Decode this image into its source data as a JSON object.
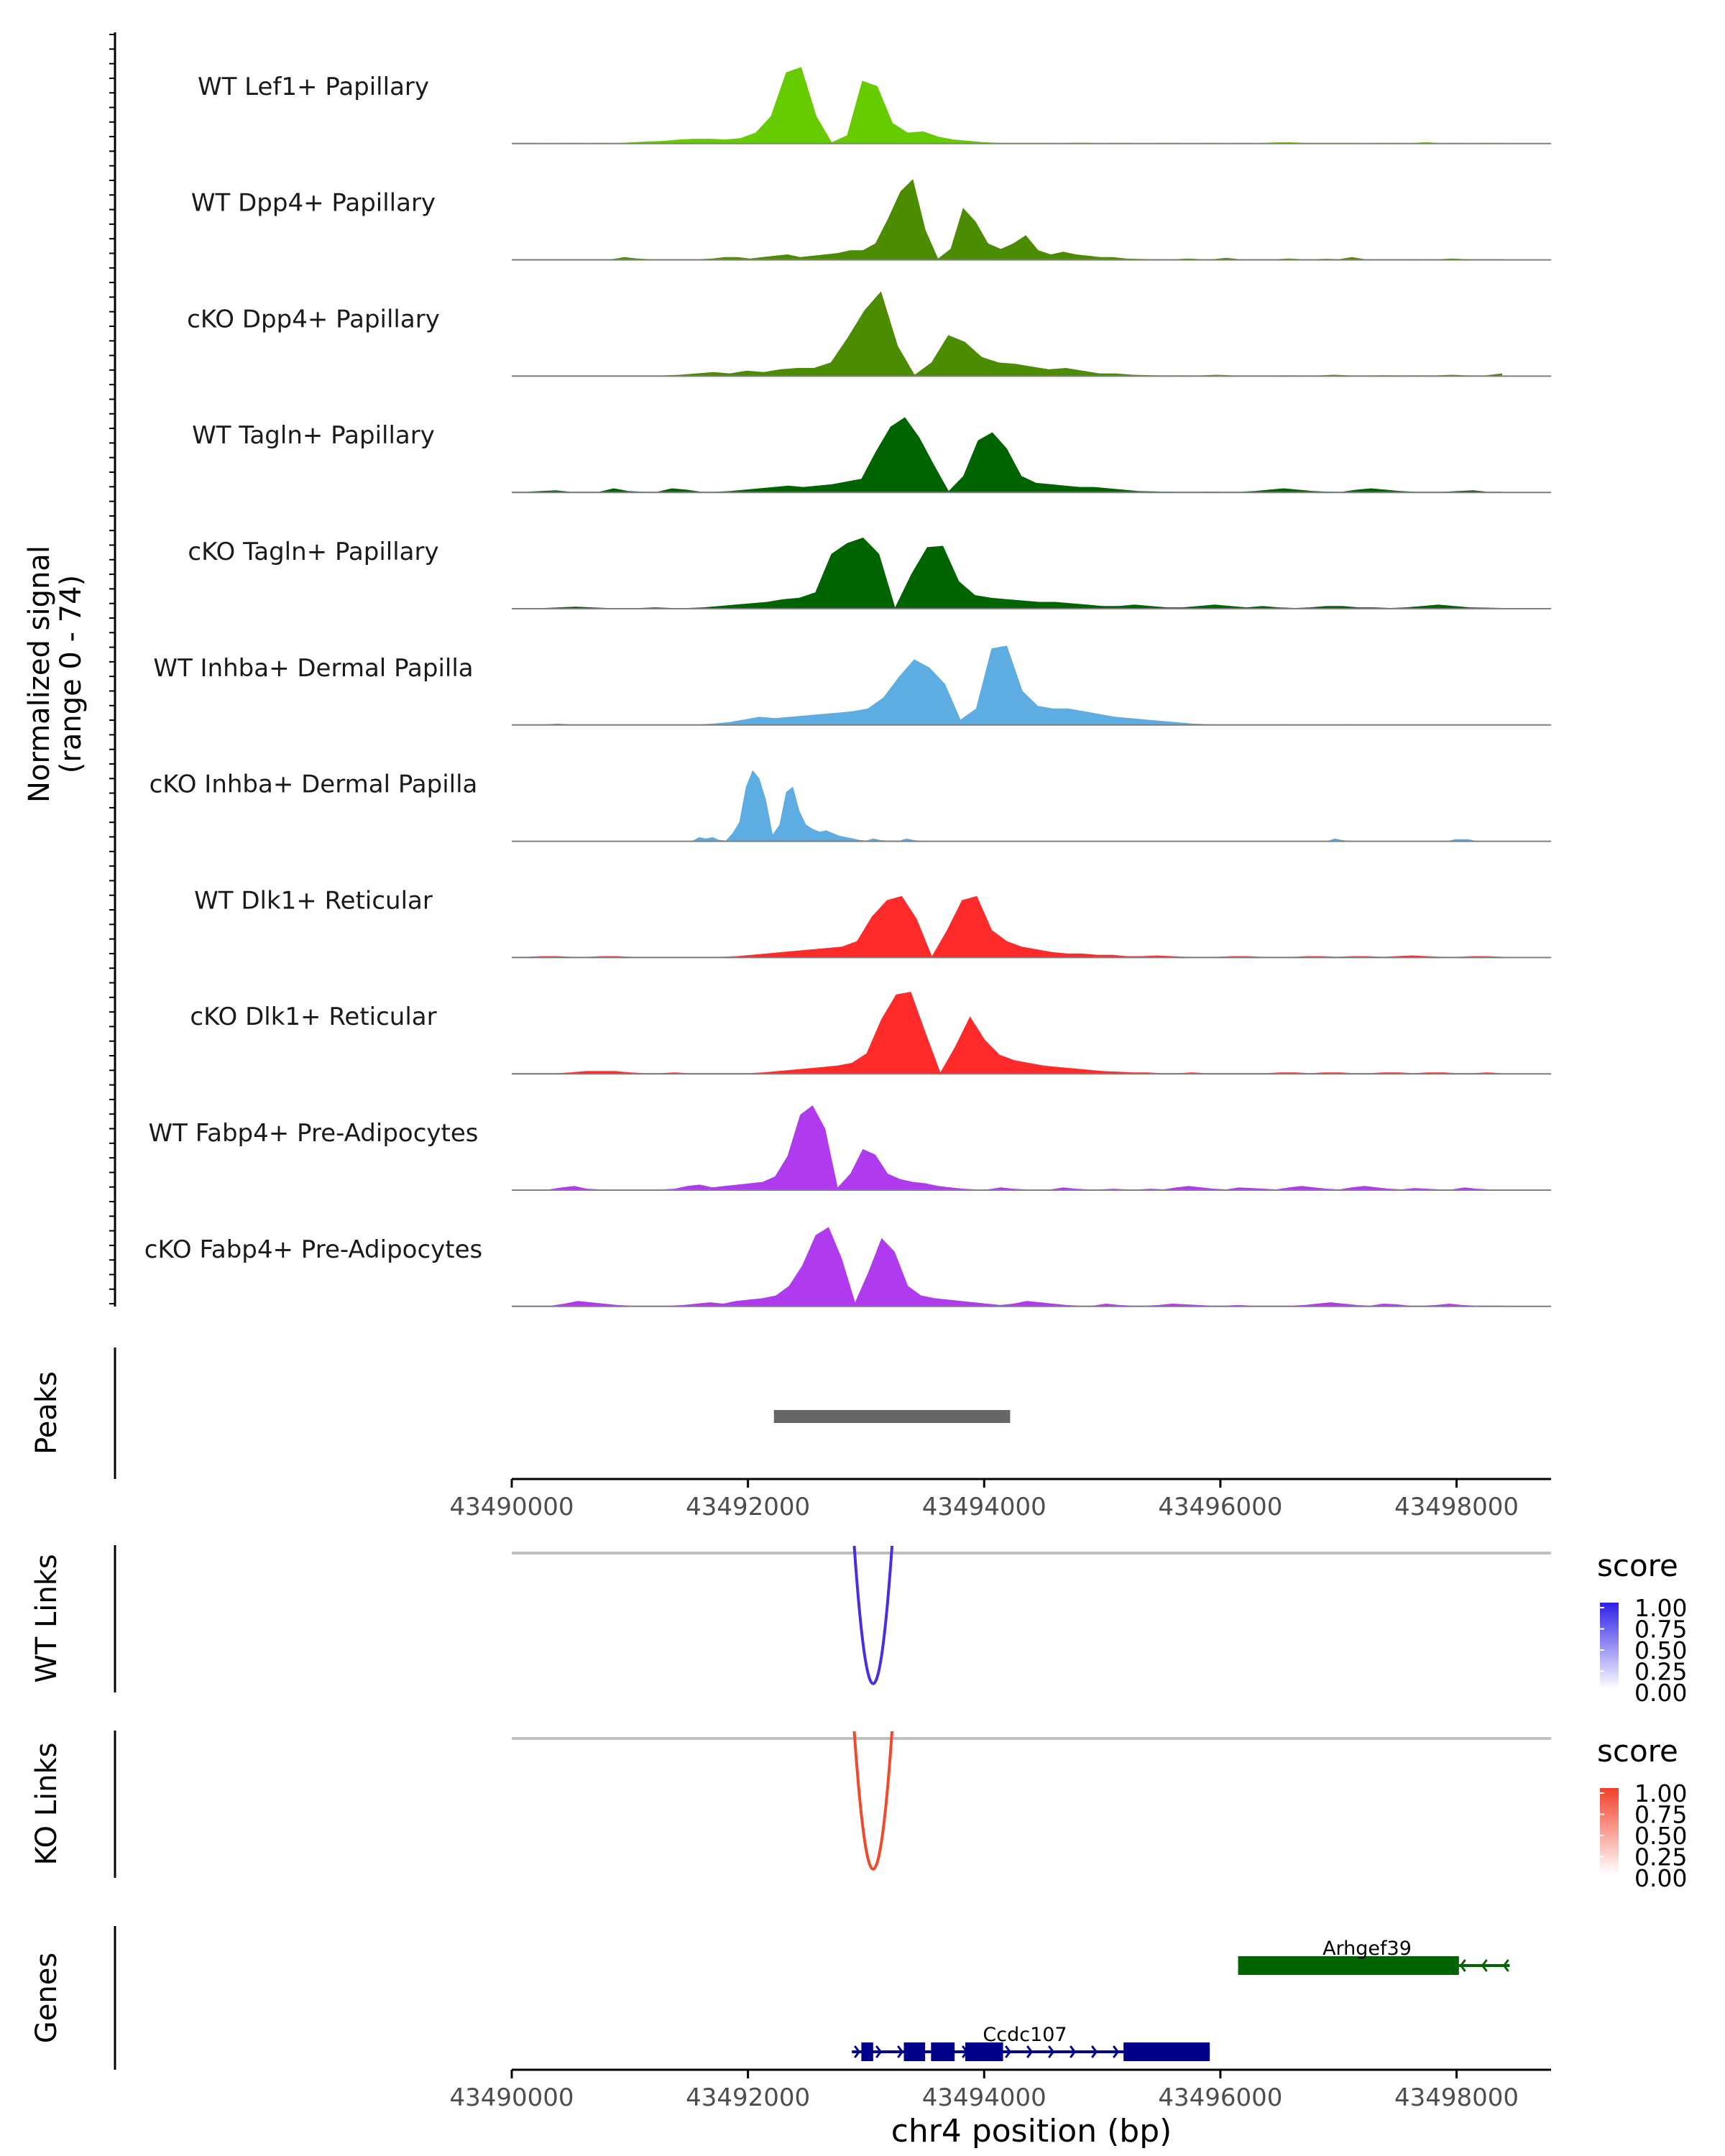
{
  "chart_data": {
    "type": "area",
    "genomic_range": [
      43490000,
      43498800
    ],
    "xlabel": "chr4 position (bp)",
    "x_ticks": [
      "43490000",
      "43492000",
      "43494000",
      "43496000",
      "43498000"
    ],
    "coverage": {
      "ylabel_line1": "Normalized signal",
      "ylabel_line2": "(range 0 - 74)",
      "ylim": [
        0,
        74
      ],
      "tracks": [
        {
          "name": "WT Lef1+ Papillary",
          "color": "#66CC00",
          "values": [
            0.4,
            0.6,
            0.4,
            0.4,
            0.5,
            0.4,
            0.5,
            0.4,
            1,
            1.5,
            2,
            3,
            3.5,
            3.5,
            3,
            4,
            8,
            20,
            52,
            56,
            20,
            1,
            6,
            46,
            42,
            15,
            8,
            9,
            5,
            3,
            2,
            1,
            0.6,
            0.5,
            0.5,
            0.5,
            0.4,
            0.7,
            0.5,
            0.4,
            0.5,
            0.4,
            0.4,
            0.5,
            0.4,
            0.4,
            0.5,
            0.4,
            0.5,
            0.4,
            0.8,
            1,
            0.6,
            0.5,
            0.5,
            0.5,
            0.4,
            0.5,
            0.5,
            0.4,
            1,
            0.4,
            0.5,
            0.4,
            0.5,
            0.5
          ]
        },
        {
          "name": "WT Dpp4+ Papillary",
          "color": "#4C8C00",
          "values": [
            0.5,
            0.5,
            0.5,
            0.5,
            0.5,
            0.5,
            0.5,
            0.5,
            0.5,
            2,
            1,
            0.5,
            0.5,
            0.5,
            0.5,
            0.5,
            1,
            2,
            2,
            1,
            2,
            3,
            4,
            2,
            3,
            4,
            5,
            7,
            7,
            12,
            30,
            50,
            59,
            22,
            1,
            8,
            38,
            28,
            12,
            8,
            12,
            18,
            7,
            4,
            6,
            4,
            3,
            2,
            2,
            1,
            0.7,
            0.6,
            0.5,
            0.5,
            1,
            0.5,
            0.6,
            1.5,
            0.5,
            0.5,
            0.5,
            0.5,
            1,
            0.5,
            0.5,
            0.8,
            0.5,
            2,
            0.6,
            0.5,
            0.5,
            0.5,
            0.6,
            0.5,
            0.5,
            1,
            0.6,
            0.5,
            0.5,
            0.5
          ]
        },
        {
          "name": "cKO Dpp4+ Papillary",
          "color": "#4C8C00",
          "values": [
            0.5,
            0.5,
            0.5,
            0.5,
            0.5,
            0.5,
            0.5,
            0.5,
            0.5,
            0.5,
            1,
            2,
            3,
            2,
            4,
            3,
            5,
            6,
            6,
            10,
            28,
            48,
            62,
            22,
            1,
            10,
            30,
            25,
            14,
            10,
            9,
            7,
            5,
            6,
            4,
            2,
            2,
            1,
            0.7,
            0.5,
            0.6,
            0.5,
            1,
            0.5,
            0.5,
            0.5,
            0.6,
            0.5,
            0.5,
            1,
            0.5,
            0.5,
            0.7,
            0.5,
            0.6,
            0.5,
            1,
            0.5,
            0.5,
            2
          ]
        },
        {
          "name": "WT Tagln+ Papillary",
          "color": "#006400",
          "values": [
            0.5,
            0.5,
            1,
            1.5,
            0.5,
            0.5,
            0.5,
            3,
            1,
            0.5,
            0.5,
            3,
            2,
            0.5,
            0.5,
            1,
            2,
            3,
            4,
            5,
            4,
            5,
            6,
            8,
            10,
            30,
            48,
            55,
            40,
            20,
            1,
            12,
            38,
            44,
            32,
            12,
            7,
            6,
            5,
            4,
            4,
            3,
            2,
            1,
            0.8,
            0.6,
            0.5,
            0.5,
            0.6,
            0.5,
            0.5,
            1,
            2,
            3,
            2,
            1,
            0.6,
            0.5,
            2,
            3,
            2,
            1,
            0.5,
            0.5,
            0.5,
            1,
            1.5,
            0.5,
            0.5
          ]
        },
        {
          "name": "cKO Tagln+ Papillary",
          "color": "#006400",
          "values": [
            0.5,
            0.5,
            0.5,
            1,
            1.5,
            1,
            0.5,
            0.5,
            0.5,
            1,
            0.5,
            0.5,
            1,
            2,
            3,
            4,
            5,
            7,
            8,
            12,
            40,
            48,
            52,
            40,
            1,
            25,
            45,
            46,
            20,
            10,
            8,
            7,
            6,
            5,
            5,
            4,
            3,
            2,
            2,
            3,
            2,
            1,
            1,
            2,
            3,
            2,
            1,
            2,
            1,
            0.5,
            1,
            2,
            2,
            1,
            1,
            0.5,
            1,
            2,
            3,
            2,
            1,
            0.8,
            0.5
          ]
        },
        {
          "name": "WT Inhba+ Dermal Papilla",
          "color": "#5DADE2",
          "values": [
            0.3,
            0.3,
            0.3,
            1,
            0.3,
            0.3,
            0.3,
            0.3,
            0.3,
            0.3,
            0.3,
            0.3,
            0.3,
            1,
            2,
            4,
            6,
            5,
            6,
            7,
            8,
            9,
            10,
            12,
            20,
            35,
            48,
            42,
            30,
            4,
            12,
            56,
            58,
            25,
            14,
            12,
            12,
            10,
            8,
            6,
            5,
            4,
            3,
            2,
            1,
            0.5,
            0.3,
            0.3,
            0.3,
            0.3,
            0.6,
            0.3,
            0.3,
            0.3,
            0.6,
            0.3,
            0.3,
            0.3,
            0.3,
            0.3,
            0.3,
            0.3,
            0.3,
            0.3,
            0.3
          ]
        },
        {
          "name": "cKO Inhba+ Dermal Papilla",
          "color": "#5DADE2",
          "values": [
            0.3,
            0.3,
            0.3,
            0.3,
            0.3,
            0.3,
            0.3,
            0.3,
            0.3,
            0.3,
            0.3,
            0.3,
            0.3,
            0.3,
            0.3,
            0.3,
            0.3,
            0.3,
            0.3,
            0.3,
            0.3,
            0.3,
            0.3,
            0.3,
            0.3,
            0.3,
            0.3,
            0.3,
            3,
            2,
            3,
            1,
            0.5,
            6,
            14,
            40,
            52,
            46,
            30,
            5,
            12,
            36,
            40,
            22,
            12,
            9,
            7,
            8,
            6,
            4,
            3,
            2,
            1,
            0.5,
            2,
            1,
            0.5,
            0.5,
            0.5,
            2,
            1,
            0.3,
            0.3,
            0.3,
            0.3,
            0.3,
            0.3,
            0.3,
            0.3,
            0.3,
            0.3,
            0.3,
            0.3,
            0.3,
            0.3,
            0.3,
            0.3,
            0.3,
            0.3,
            0.3,
            0.3,
            0.3,
            0.3,
            0.3,
            0.3,
            0.3,
            0.3,
            0.3,
            0.3,
            0.3,
            0.3,
            0.3,
            0.3,
            0.3,
            0.3,
            0.3,
            0.3,
            0.3,
            0.3,
            0.3,
            0.3,
            0.3,
            0.3,
            0.3,
            0.3,
            0.3,
            0.3,
            0.3,
            0.3,
            0.3,
            0.3,
            0.3,
            0.3,
            0.3,
            0.3,
            0.3,
            0.3,
            0.3,
            0.3,
            0.3,
            0.3,
            0.3,
            0.3,
            2,
            1,
            0.3,
            0.3,
            0.3,
            0.3,
            0.3,
            0.3,
            0.3,
            0.3,
            0.3,
            0.3,
            0.3,
            0.3,
            0.3,
            0.3,
            0.3,
            0.3,
            1.5,
            1.5,
            1.5,
            0.3,
            0.3,
            0.3,
            0.3,
            0.3
          ]
        },
        {
          "name": "WT Dlk1+ Reticular",
          "color": "#FF2A2A",
          "values": [
            0.5,
            0.5,
            1,
            1,
            0.5,
            0.5,
            1,
            1,
            0.5,
            0.5,
            0.5,
            0.5,
            0.5,
            0.5,
            0.5,
            1,
            2,
            3,
            4,
            5,
            6,
            7,
            8,
            12,
            30,
            42,
            45,
            28,
            1,
            20,
            42,
            45,
            20,
            12,
            8,
            6,
            4,
            3,
            3,
            2,
            2,
            1,
            1,
            1.5,
            1,
            0.5,
            0.5,
            0.5,
            1,
            1,
            0.5,
            0.5,
            0.5,
            1,
            1,
            0.5,
            1,
            1,
            0.5,
            1,
            1.5,
            1,
            0.5,
            0.5,
            1,
            1,
            0.5
          ]
        },
        {
          "name": "cKO Dlk1+ Reticular",
          "color": "#FF2A2A",
          "values": [
            0.5,
            0.5,
            0.5,
            0.5,
            1,
            2,
            2,
            2,
            1,
            0.5,
            0.5,
            1,
            0.5,
            0.5,
            0.5,
            0.5,
            0.5,
            1,
            2,
            3,
            4,
            5,
            6,
            8,
            15,
            40,
            58,
            60,
            30,
            1,
            20,
            42,
            25,
            14,
            10,
            8,
            6,
            5,
            4,
            3,
            2,
            1.5,
            1,
            1,
            0.5,
            0.5,
            1,
            0.5,
            0.5,
            0.5,
            0.5,
            0.5,
            1,
            1,
            0.5,
            1,
            1,
            0.5,
            0.5,
            1,
            1,
            0.5,
            1,
            1,
            0.5,
            0.5,
            1,
            0.5
          ]
        },
        {
          "name": "WT Fabp4+ Pre-Adipocytes",
          "color": "#B03AEE",
          "values": [
            0.5,
            0.5,
            0.5,
            0.5,
            2,
            3,
            1,
            0.5,
            0.5,
            0.5,
            0.5,
            0.5,
            0.5,
            1,
            3,
            4,
            2,
            3,
            4,
            5,
            6,
            10,
            25,
            55,
            62,
            45,
            2,
            12,
            30,
            26,
            12,
            8,
            6,
            5,
            3,
            2,
            1,
            0.5,
            0.5,
            2,
            1,
            0.5,
            0.5,
            0.5,
            2,
            1,
            0.5,
            0.5,
            1,
            0.5,
            0.5,
            1,
            0.5,
            2,
            3,
            2,
            1,
            0.5,
            2,
            1.5,
            1,
            0.5,
            2,
            3,
            2,
            1,
            0.5,
            2,
            3,
            2,
            1,
            0.5,
            1.5,
            1,
            0.5,
            0.5,
            2,
            1,
            0.5,
            0.5
          ]
        },
        {
          "name": "cKO Fabp4+ Pre-Adipocytes",
          "color": "#B03AEE",
          "values": [
            0.5,
            0.5,
            0.5,
            0.5,
            2,
            4,
            3,
            2,
            1,
            0.5,
            0.5,
            0.5,
            0.5,
            1,
            2,
            3,
            2,
            4,
            5,
            6,
            8,
            15,
            30,
            52,
            58,
            35,
            3,
            25,
            50,
            40,
            15,
            8,
            6,
            5,
            4,
            3,
            2,
            1,
            2,
            4,
            3,
            2,
            1,
            0.5,
            0.5,
            2,
            1,
            0.5,
            0.5,
            1,
            2,
            1.5,
            1,
            0.5,
            0.5,
            1,
            0.5,
            0.5,
            0.5,
            0.5,
            1,
            2,
            3,
            2,
            1,
            0.5,
            2,
            1.5,
            0.5,
            0.5,
            1,
            2,
            1,
            0.5,
            0.5,
            0.5
          ]
        }
      ]
    },
    "peaks": {
      "label": "Peaks",
      "regions": [
        {
          "start": 43492220,
          "end": 43494220
        }
      ]
    },
    "links": [
      {
        "label": "WT Links",
        "color": "#4A2FE0",
        "start": 43492900,
        "end": 43493220,
        "score": 1.0,
        "legend_title": "score",
        "legend_ticks": [
          "1.00",
          "0.75",
          "0.50",
          "0.25",
          "0.00"
        ],
        "legend_color": "#2E1FE8"
      },
      {
        "label": "KO Links",
        "color": "#F04A2E",
        "start": 43492900,
        "end": 43493220,
        "score": 1.0,
        "legend_title": "score",
        "legend_ticks": [
          "1.00",
          "0.75",
          "0.50",
          "0.25",
          "0.00"
        ],
        "legend_color": "#F2402B"
      }
    ],
    "genes": {
      "label": "Genes",
      "items": [
        {
          "name": "Arhgef39",
          "strand": "-",
          "color": "#006400",
          "start": 43496150,
          "end": 43498450,
          "exons": [
            [
              43496150,
              43498020
            ]
          ]
        },
        {
          "name": "Ccdc107",
          "strand": "+",
          "color": "#00008B",
          "start": 43492880,
          "end": 43495910,
          "exons": [
            [
              43492960,
              43493060
            ],
            [
              43493320,
              43493500
            ],
            [
              43493550,
              43493750
            ],
            [
              43493840,
              43494160
            ],
            [
              43495180,
              43495910
            ]
          ]
        }
      ]
    }
  }
}
